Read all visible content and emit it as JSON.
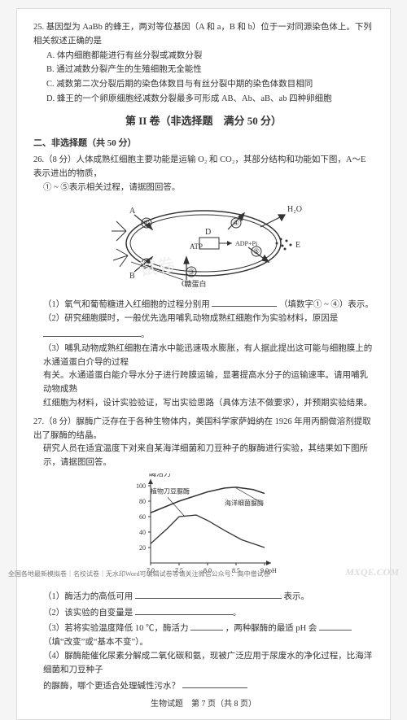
{
  "q25": {
    "stem": "25.  基因型为 AaBb 的蜂王，两对等位基因（A 和 a，B 和 b）位于一对同源染色体上。下列相关叙述正确的是",
    "A": "A. 体内细胞都能进行有丝分裂或减数分裂",
    "B": "B. 通过减数分裂产生的生殖细胞无全能性",
    "C": "C. 减数第二次分裂后期的染色体数目与有丝分裂中期的染色体数目相同",
    "D": "D. 蜂王的一个卵原细胞经减数分裂最多可形成 AB、Ab、aB、ab 四种卵细胞"
  },
  "section2": {
    "title": "第 II 卷（非选择题　满分 50 分）",
    "sub": "二、非选择题（共 50 分）"
  },
  "q26": {
    "stem1": "26.（8 分）人体成熟红细胞主要功能是运输 O₂ 和 CO₂，其部分结构和功能如下图，A～E 表示进出的物质，",
    "stem2": "① ~ ⑤表示相关过程，请据图回答。",
    "diagram": {
      "labels": {
        "A": "A",
        "B": "B",
        "C": "C",
        "D": "D",
        "E": "E",
        "H2O": "H₂O",
        "ATP": "ATP",
        "ADP": "ADP+Pi",
        "sugar": "糖蛋白"
      },
      "colors": {
        "bg": "#ffffff",
        "stroke": "#333333",
        "fill": "#f9f9f9"
      }
    },
    "p1a": "（1）氧气和葡萄糖进入红细胞的过程分别用",
    "p1b": "（填数字① ~ ④）表示。",
    "p2": "（2）研究细胞膜时，一般优先选用哺乳动物成熟红细胞作为实验材料，原因是",
    "p3a": "（3）哺乳动物成熟红细胞在清水中能迅速吸水膨胀，有人据此提出这可能与细胞膜上的水通道蛋白介导的过程",
    "p3b": "有关。水通道蛋白能介导水分子进行跨膜运输，显著提高水分子的运输速率。请用哺乳动物成熟",
    "p3c": "红细胞为材料，设计实验验证，写出实验思路（具体方法不做要求），并预期实验结果。"
  },
  "q27": {
    "stem1": "27.（8 分）脲酶广泛存在于各种生物体内，美国科学家萨姆纳在 1926 年用丙酮做溶剂提取出了脲酶的结晶。",
    "stem2": "研究人员在适宜温度下对来自某海洋细菌和刀豆种子的脲酶进行实验，其结果如下图所示，请据图回答。",
    "chart": {
      "type": "line",
      "x_label_ticks": [
        "7.0",
        "7.5",
        "8.0",
        "8.5",
        "9.0"
      ],
      "x_sublabel": "pH",
      "y_label": "酶活力",
      "y_ticks": [
        "20",
        "40",
        "60",
        "80",
        "100"
      ],
      "series": [
        {
          "name": "植物刀豆脲酶",
          "color": "#333333",
          "points": [
            [
              7.0,
              25
            ],
            [
              7.3,
              45
            ],
            [
              7.5,
              60
            ],
            [
              7.8,
              62
            ],
            [
              8.0,
              55
            ],
            [
              8.3,
              42
            ],
            [
              8.6,
              30
            ],
            [
              9.0,
              20
            ]
          ]
        },
        {
          "name": "海洋细菌脲酶",
          "color": "#333333",
          "dash": true,
          "points": [
            [
              7.0,
              65
            ],
            [
              7.5,
              80
            ],
            [
              8.0,
              92
            ],
            [
              8.3,
              97
            ],
            [
              8.5,
              98
            ],
            [
              8.8,
              95
            ],
            [
              9.0,
              90
            ]
          ]
        }
      ],
      "xlim": [
        7.0,
        9.0
      ],
      "ylim": [
        0,
        100
      ],
      "bg": "#ffffff",
      "axis_color": "#333333",
      "label_fontsize": 9
    },
    "p1a": "（1）酶活力的高低可用",
    "p1b": "表示。",
    "p2": "（2）该实验的自变量是",
    "p3a": "（3）若将实验温度降低 10 ℃，酶活力",
    "p3b": "，两种脲酶的最适 pH 会",
    "p3c": "（填“改变”或“基本不变”）。",
    "p4a": "（4）脲酶能催化尿素分解成二氧化碳和氨，现被广泛应用于尿废水的净化过程，比海洋细菌和刀豆种子",
    "p4b": "的脲酶，哪个更适合处理碱性污水？"
  },
  "pageNum": "生物试题　第 7 页（共 8 页）",
  "footer": "全国各地最新模拟卷｜名校试卷｜无水印Word可编辑试卷等请关注微信公众号：高中僧试卷",
  "wm": "MXQE.COM"
}
